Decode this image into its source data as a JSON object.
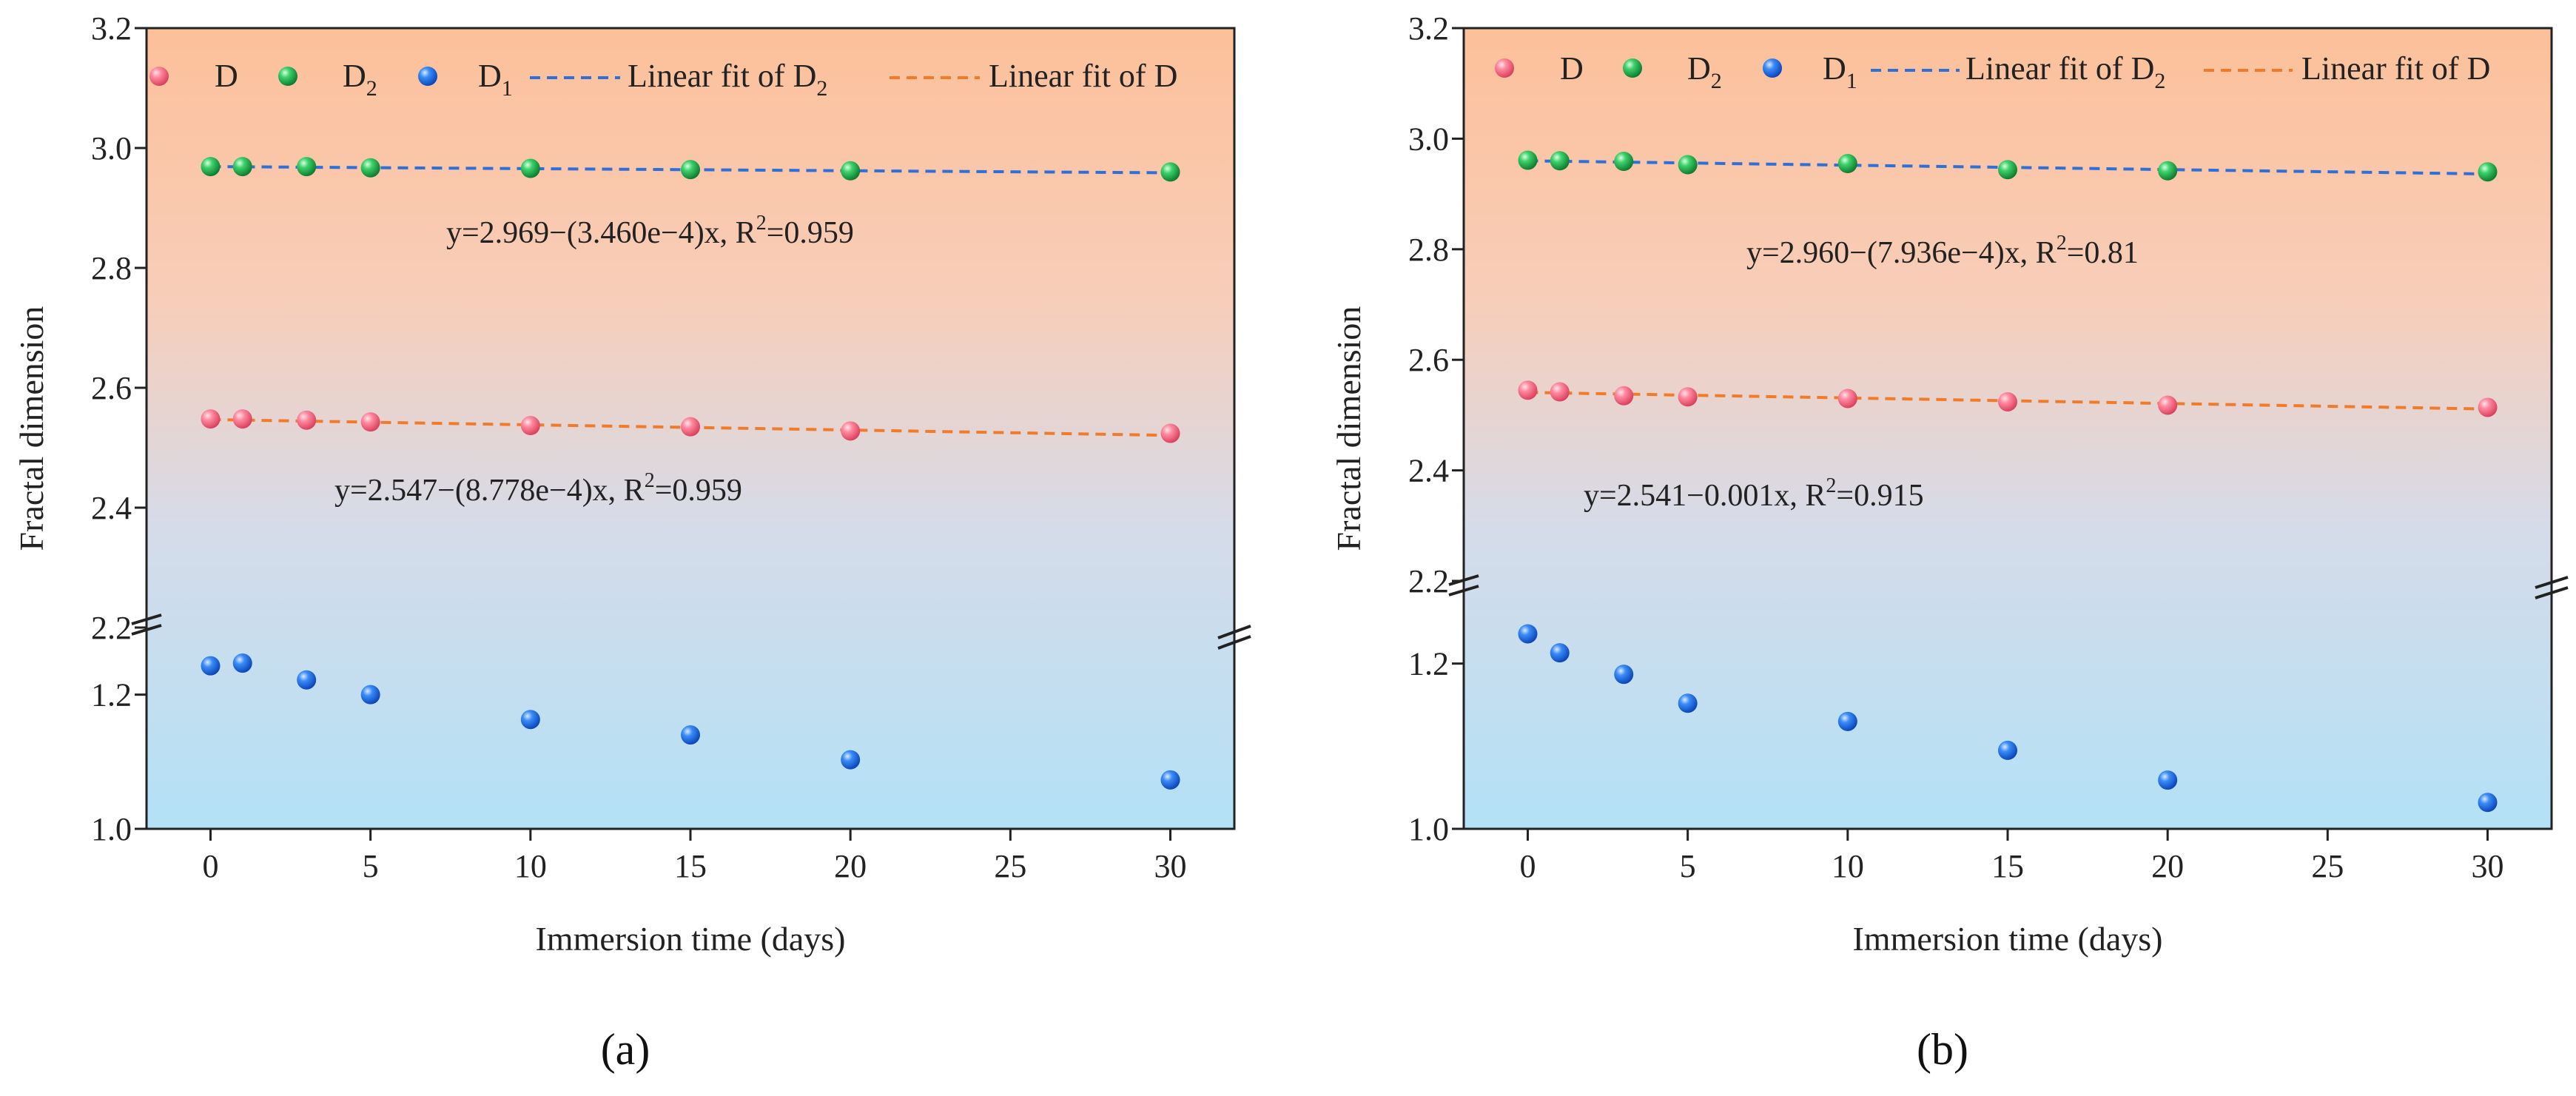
{
  "chart_data": [
    {
      "type": "scatter",
      "panel_label": "(a)",
      "xlabel": "Immersion time (days)",
      "ylabel": "Fractal dimension",
      "xlim": [
        -2,
        32
      ],
      "xticks": [
        0,
        5,
        10,
        15,
        20,
        25,
        30
      ],
      "upper_ylim": [
        2.2,
        3.2
      ],
      "upper_yticks": [
        "2.2",
        "2.4",
        "2.6",
        "2.8",
        "3.0",
        "3.2"
      ],
      "lower_ylim": [
        1.0,
        1.3
      ],
      "lower_yticks": [
        "1.0",
        "1.2"
      ],
      "legend": {
        "d": "D",
        "d2": "D",
        "d2_sub": "2",
        "d1": "D",
        "d1_sub": "1",
        "fit_d2": "Linear fit of D",
        "fit_d2_sub": "2",
        "fit_d": "Linear fit of D"
      },
      "series": [
        {
          "name": "D2",
          "color": "#22b04a",
          "x": [
            0,
            1,
            3,
            5,
            10,
            15,
            20,
            30
          ],
          "values": [
            2.969,
            2.969,
            2.969,
            2.967,
            2.966,
            2.964,
            2.962,
            2.96
          ]
        },
        {
          "name": "D",
          "color": "#f46b83",
          "x": [
            0,
            1,
            3,
            5,
            10,
            15,
            20,
            30
          ],
          "values": [
            2.548,
            2.548,
            2.546,
            2.543,
            2.537,
            2.535,
            2.528,
            2.524
          ]
        },
        {
          "name": "D1",
          "color": "#1f6ee8",
          "x": [
            0,
            1,
            3,
            5,
            10,
            15,
            20,
            30
          ],
          "values": [
            1.243,
            1.247,
            1.222,
            1.2,
            1.163,
            1.14,
            1.103,
            1.073
          ]
        }
      ],
      "fits": [
        {
          "name": "Linear fit of D2",
          "color": "#2f6fd6",
          "intercept": 2.969,
          "slope": -0.000346
        },
        {
          "name": "Linear fit of D",
          "color": "#f07b2a",
          "intercept": 2.547,
          "slope": -0.0008778
        }
      ],
      "eq_d2": {
        "pre": "y=2.969−(3.460e−4)x, R",
        "sup": "2",
        "post": "=0.959"
      },
      "eq_d": {
        "pre": "y=2.547−(8.778e−4)x, R",
        "sup": "2",
        "post": "=0.959"
      }
    },
    {
      "type": "scatter",
      "panel_label": "(b)",
      "xlabel": "Immersion time (days)",
      "ylabel": "Fractal dimension",
      "xlim": [
        -2,
        32
      ],
      "xticks": [
        0,
        5,
        10,
        15,
        20,
        25,
        30
      ],
      "upper_ylim": [
        2.2,
        3.2
      ],
      "upper_yticks": [
        "2.2",
        "2.4",
        "2.6",
        "2.8",
        "3.0",
        "3.2"
      ],
      "lower_ylim": [
        1.0,
        1.3
      ],
      "lower_yticks": [
        "1.0",
        "1.2"
      ],
      "legend": {
        "d": "D",
        "d2": "D",
        "d2_sub": "2",
        "d1": "D",
        "d1_sub": "1",
        "fit_d2": "Linear fit of D",
        "fit_d2_sub": "2",
        "fit_d": "Linear fit of D"
      },
      "series": [
        {
          "name": "D2",
          "color": "#22b04a",
          "x": [
            0,
            1,
            3,
            5,
            10,
            15,
            20,
            30
          ],
          "values": [
            2.961,
            2.96,
            2.959,
            2.953,
            2.955,
            2.944,
            2.942,
            2.94
          ]
        },
        {
          "name": "D",
          "color": "#f46b83",
          "x": [
            0,
            1,
            3,
            5,
            10,
            15,
            20,
            30
          ],
          "values": [
            2.545,
            2.542,
            2.535,
            2.533,
            2.53,
            2.524,
            2.518,
            2.514
          ]
        },
        {
          "name": "D1",
          "color": "#1f6ee8",
          "x": [
            0,
            1,
            3,
            5,
            10,
            15,
            20,
            30
          ],
          "values": [
            1.236,
            1.213,
            1.187,
            1.152,
            1.13,
            1.095,
            1.059,
            1.032
          ]
        }
      ],
      "fits": [
        {
          "name": "Linear fit of D2",
          "color": "#2f6fd6",
          "intercept": 2.96,
          "slope": -0.0007936
        },
        {
          "name": "Linear fit of D",
          "color": "#f07b2a",
          "intercept": 2.541,
          "slope": -0.001
        }
      ],
      "eq_d2": {
        "pre": "y=2.960−(7.936e−4)x, R",
        "sup": "2",
        "post": "=0.81"
      },
      "eq_d": {
        "pre": "y=2.541−0.001x, R",
        "sup": "2",
        "post": "=0.915"
      }
    }
  ]
}
